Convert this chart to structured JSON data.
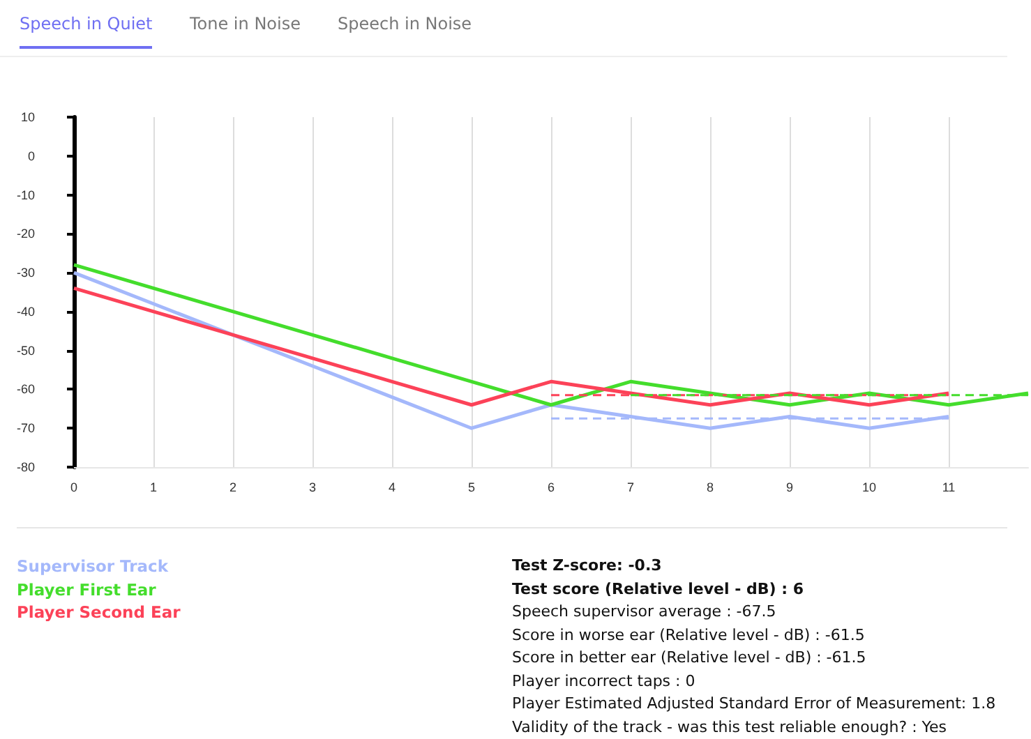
{
  "chart_data": {
    "type": "line",
    "annotations": [
      "Speech in Quiet",
      "Tone in Noise",
      "Speech in Noise",
      "Test Z-score: -0.3",
      "Test score (Relative level - dB) : 6",
      "Speech supervisor average : -67.5",
      "Score in worse ear (Relative level - dB) : -61.5",
      "Score in better ear (Relative level - dB) : -61.5",
      "Player incorrect taps : 0",
      "Player Estimated Adjusted Standard Error of Measurement: 1.8",
      "Validity of the track - was this test reliable enough? : Yes"
    ],
    "x": [
      0,
      1,
      2,
      3,
      4,
      5,
      6,
      7,
      8,
      9,
      10,
      11
    ],
    "series": [
      {
        "name": "Supervisor Track",
        "color": "#a4b8fb",
        "values": [
          -30,
          -38,
          -46,
          -54,
          -62,
          -70,
          -64,
          -67,
          -70,
          -67,
          -70,
          -67
        ]
      },
      {
        "name": "Player First Ear",
        "color": "#44dd2c",
        "x": [
          0,
          1,
          2,
          3,
          4,
          5,
          6,
          7,
          8,
          9,
          10,
          11,
          12
        ],
        "values": [
          -28,
          -34,
          -40,
          -46,
          -52,
          -58,
          -64,
          -58,
          -61,
          -64,
          -61,
          -64,
          -61
        ]
      },
      {
        "name": "Player Second Ear",
        "color": "#fc4258",
        "values": [
          -34,
          -40,
          -46,
          -52,
          -58,
          -64,
          -58,
          -61,
          -64,
          -61,
          -64,
          -61
        ]
      },
      {
        "color": "#a4b8fb",
        "x": [
          6,
          11
        ],
        "values": [
          -67.5,
          -67.5
        ],
        "line_style": "dashed"
      },
      {
        "color": "#fc4258",
        "x": [
          6,
          11
        ],
        "values": [
          -61.5,
          -61.5
        ],
        "line_style": "dashed"
      },
      {
        "color": "#44dd2c",
        "x": [
          7,
          12
        ],
        "values": [
          -61.5,
          -61.5
        ],
        "line_style": "dashed"
      }
    ],
    "xlim": [
      0,
      12
    ],
    "xticks": [
      0,
      1,
      2,
      3,
      4,
      5,
      6,
      7,
      8,
      9,
      10,
      11
    ],
    "ylim": [
      -80,
      10
    ],
    "yticks": [
      -80,
      -70,
      -60,
      -50,
      -40,
      -30,
      -20,
      -10,
      0,
      10
    ],
    "grid": "x",
    "legend": "bottom left",
    "marker": "none",
    "line_style": "solid"
  }
}
